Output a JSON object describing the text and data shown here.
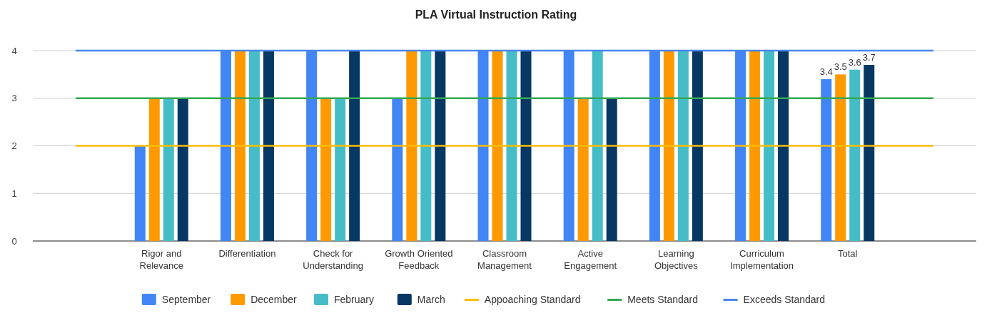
{
  "chart_data": {
    "type": "bar",
    "title": "PLA Virtual Instruction Rating",
    "categories": [
      null,
      "Rigor and Relevance",
      "Differentiation",
      "Check for Understanding",
      "Growth Oriented Feedback",
      "Classroom Management",
      "Active Engagement",
      "Learning Objectives",
      "Curriculum Implementation",
      "Total",
      null
    ],
    "series": [
      {
        "name": "September",
        "color": "#4285f4",
        "values": [
          null,
          2,
          4,
          4,
          3,
          4,
          4,
          4,
          4,
          3.4,
          null
        ],
        "value_labels": [
          null,
          null,
          null,
          null,
          null,
          null,
          null,
          null,
          null,
          "3.4",
          null
        ]
      },
      {
        "name": "December",
        "color": "#ff9900",
        "values": [
          null,
          3,
          4,
          3,
          4,
          4,
          3,
          4,
          4,
          3.5,
          null
        ],
        "value_labels": [
          null,
          null,
          null,
          null,
          null,
          null,
          null,
          null,
          null,
          "3.5",
          null
        ]
      },
      {
        "name": "February",
        "color": "#46bdc6",
        "values": [
          null,
          3,
          4,
          3,
          4,
          4,
          4,
          4,
          4,
          3.6,
          null
        ],
        "value_labels": [
          null,
          null,
          null,
          null,
          null,
          null,
          null,
          null,
          null,
          "3.6",
          null
        ]
      },
      {
        "name": "March",
        "color": "#073763",
        "values": [
          null,
          3,
          4,
          4,
          4,
          4,
          3,
          4,
          4,
          3.7,
          null
        ],
        "value_labels": [
          null,
          null,
          null,
          null,
          null,
          null,
          null,
          null,
          null,
          "3.7",
          null
        ]
      },
      {
        "name": "Appoaching Standard",
        "type": "line",
        "color": "#fbbc04",
        "values": [
          2,
          2,
          2,
          2,
          2,
          2,
          2,
          2,
          2,
          2,
          2
        ]
      },
      {
        "name": "Meets Standard",
        "type": "line",
        "color": "#34a853",
        "values": [
          3,
          3,
          3,
          3,
          3,
          3,
          3,
          3,
          3,
          3,
          3
        ]
      },
      {
        "name": "Exceeds Standard",
        "type": "line",
        "color": "#4a86e8",
        "values": [
          4,
          4,
          4,
          4,
          4,
          4,
          4,
          4,
          4,
          4,
          4
        ]
      }
    ],
    "ylim": [
      0,
      4
    ],
    "yticks": [
      0,
      1,
      2,
      3,
      4
    ],
    "grid": "y",
    "legend": "bottom"
  }
}
